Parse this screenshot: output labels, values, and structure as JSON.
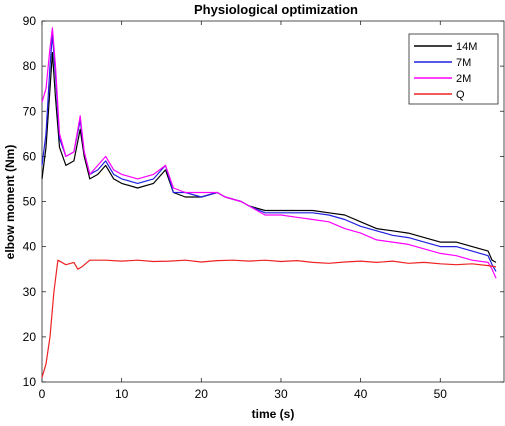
{
  "chart_data": {
    "type": "line",
    "title": "Physiological optimization",
    "xlabel": "time (s)",
    "ylabel": "elbow moment (Nm)",
    "xlim": [
      0,
      58
    ],
    "ylim": [
      10,
      90
    ],
    "xticks": [
      0,
      10,
      20,
      30,
      40,
      50
    ],
    "yticks": [
      10,
      20,
      30,
      40,
      50,
      60,
      70,
      80,
      90
    ],
    "grid": false,
    "legend_position": "top-right",
    "series": [
      {
        "name": "14M",
        "color": "#000000",
        "points": [
          [
            0,
            55
          ],
          [
            0.5,
            62
          ],
          [
            1,
            75
          ],
          [
            1.3,
            83
          ],
          [
            1.7,
            73
          ],
          [
            2.2,
            62
          ],
          [
            3,
            58
          ],
          [
            4,
            59
          ],
          [
            4.8,
            66
          ],
          [
            5.3,
            60
          ],
          [
            6,
            55
          ],
          [
            7,
            56
          ],
          [
            8,
            58
          ],
          [
            9,
            55
          ],
          [
            10,
            54
          ],
          [
            12,
            53
          ],
          [
            14,
            54
          ],
          [
            15.5,
            57
          ],
          [
            16.5,
            52
          ],
          [
            18,
            51
          ],
          [
            20,
            51
          ],
          [
            22,
            52
          ],
          [
            23,
            51
          ],
          [
            25,
            50
          ],
          [
            26,
            49
          ],
          [
            28,
            48
          ],
          [
            30,
            48
          ],
          [
            32,
            48
          ],
          [
            34,
            48
          ],
          [
            36,
            47.5
          ],
          [
            38,
            47
          ],
          [
            40,
            45.5
          ],
          [
            42,
            44
          ],
          [
            44,
            43.5
          ],
          [
            46,
            43
          ],
          [
            48,
            42
          ],
          [
            50,
            41
          ],
          [
            52,
            41
          ],
          [
            54,
            40
          ],
          [
            56,
            39
          ],
          [
            56.5,
            37
          ],
          [
            57,
            36.5
          ]
        ]
      },
      {
        "name": "7M",
        "color": "#2020e0",
        "points": [
          [
            0,
            58
          ],
          [
            0.5,
            65
          ],
          [
            1,
            80
          ],
          [
            1.3,
            87
          ],
          [
            1.7,
            78
          ],
          [
            2.2,
            64
          ],
          [
            3,
            60
          ],
          [
            4,
            61
          ],
          [
            4.8,
            68
          ],
          [
            5.3,
            61
          ],
          [
            6,
            56
          ],
          [
            7,
            57
          ],
          [
            8,
            59
          ],
          [
            9,
            56
          ],
          [
            10,
            55
          ],
          [
            12,
            54
          ],
          [
            14,
            55
          ],
          [
            15.5,
            58
          ],
          [
            16.5,
            52
          ],
          [
            18,
            52
          ],
          [
            20,
            51
          ],
          [
            22,
            52
          ],
          [
            23,
            51
          ],
          [
            25,
            50
          ],
          [
            26,
            49
          ],
          [
            28,
            47.5
          ],
          [
            30,
            47.5
          ],
          [
            32,
            47.5
          ],
          [
            34,
            47.5
          ],
          [
            36,
            47
          ],
          [
            38,
            46
          ],
          [
            40,
            44.5
          ],
          [
            42,
            43.5
          ],
          [
            44,
            42.5
          ],
          [
            46,
            42
          ],
          [
            48,
            41
          ],
          [
            50,
            40
          ],
          [
            52,
            40
          ],
          [
            54,
            39
          ],
          [
            56,
            38
          ],
          [
            56.5,
            36
          ],
          [
            57,
            34.5
          ]
        ]
      },
      {
        "name": "2M",
        "color": "#ff00ff",
        "points": [
          [
            0,
            72
          ],
          [
            0.5,
            75
          ],
          [
            1,
            84
          ],
          [
            1.3,
            88.5
          ],
          [
            1.7,
            80
          ],
          [
            2.2,
            65
          ],
          [
            3,
            60
          ],
          [
            4,
            61
          ],
          [
            4.8,
            69
          ],
          [
            5.3,
            61
          ],
          [
            6,
            56
          ],
          [
            7,
            58
          ],
          [
            8,
            60
          ],
          [
            9,
            57
          ],
          [
            10,
            56
          ],
          [
            12,
            55
          ],
          [
            14,
            56
          ],
          [
            15.5,
            58
          ],
          [
            16.5,
            53
          ],
          [
            18,
            52
          ],
          [
            20,
            52
          ],
          [
            22,
            52
          ],
          [
            23,
            51
          ],
          [
            25,
            50
          ],
          [
            26,
            49
          ],
          [
            28,
            47
          ],
          [
            30,
            47
          ],
          [
            32,
            46.5
          ],
          [
            34,
            46
          ],
          [
            36,
            45.5
          ],
          [
            38,
            44
          ],
          [
            40,
            43
          ],
          [
            42,
            41.5
          ],
          [
            44,
            41
          ],
          [
            46,
            40.5
          ],
          [
            48,
            39.5
          ],
          [
            50,
            38.5
          ],
          [
            52,
            38
          ],
          [
            54,
            37
          ],
          [
            56,
            36.5
          ],
          [
            56.5,
            35
          ],
          [
            57,
            33
          ]
        ]
      },
      {
        "name": "Q",
        "color": "#ee2222",
        "points": [
          [
            0,
            11
          ],
          [
            0.5,
            14
          ],
          [
            1,
            20
          ],
          [
            1.5,
            30
          ],
          [
            2,
            37
          ],
          [
            3,
            36
          ],
          [
            4,
            36.5
          ],
          [
            4.5,
            35
          ],
          [
            5,
            35.5
          ],
          [
            6,
            37
          ],
          [
            8,
            37
          ],
          [
            10,
            36.8
          ],
          [
            12,
            37
          ],
          [
            14,
            36.7
          ],
          [
            16,
            36.8
          ],
          [
            18,
            37
          ],
          [
            20,
            36.6
          ],
          [
            22,
            36.9
          ],
          [
            24,
            37
          ],
          [
            26,
            36.8
          ],
          [
            28,
            37
          ],
          [
            30,
            36.7
          ],
          [
            32,
            36.9
          ],
          [
            34,
            36.5
          ],
          [
            36,
            36.3
          ],
          [
            38,
            36.6
          ],
          [
            40,
            36.8
          ],
          [
            42,
            36.5
          ],
          [
            44,
            36.8
          ],
          [
            46,
            36.3
          ],
          [
            48,
            36.5
          ],
          [
            50,
            36.2
          ],
          [
            52,
            36
          ],
          [
            54,
            36.2
          ],
          [
            56,
            35.8
          ],
          [
            57,
            35.5
          ]
        ]
      }
    ]
  }
}
